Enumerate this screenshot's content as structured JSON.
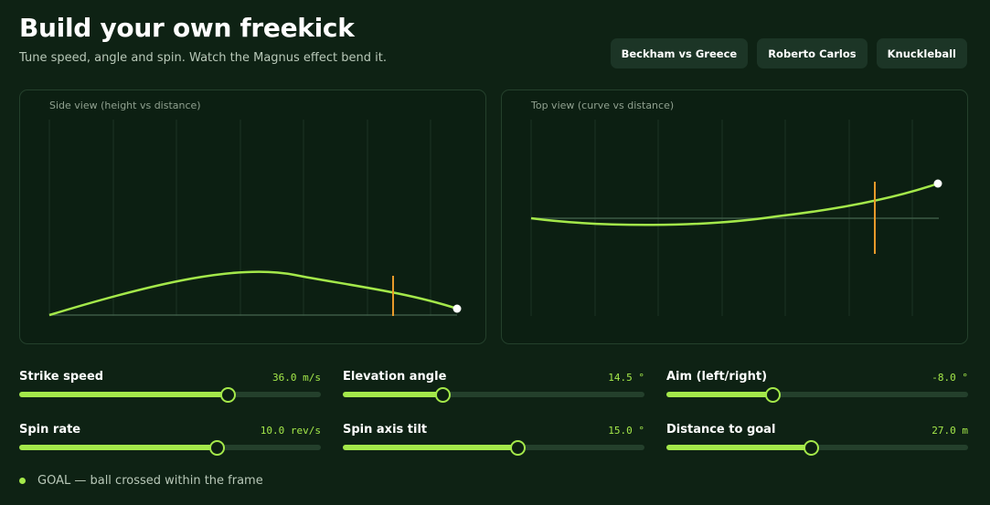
{
  "header": {
    "title": "Build your own freekick",
    "subtitle": "Tune speed, angle and spin. Watch the Magnus effect bend it."
  },
  "presets": [
    "Beckham vs Greece",
    "Roberto Carlos",
    "Knuckleball"
  ],
  "side_view": {
    "label": "Side view (height vs distance)"
  },
  "top_view": {
    "label": "Top view (curve vs distance)"
  },
  "controls": [
    {
      "label": "Strike speed",
      "value_text": "36.0 m/s",
      "fraction": 0.69
    },
    {
      "label": "Elevation angle",
      "value_text": "14.5 °",
      "fraction": 0.33
    },
    {
      "label": "Aim (left/right)",
      "value_text": "-8.0 °",
      "fraction": 0.35
    },
    {
      "label": "Spin rate",
      "value_text": "10.0 rev/s",
      "fraction": 0.655
    },
    {
      "label": "Spin axis tilt",
      "value_text": "15.0 °",
      "fraction": 0.58
    },
    {
      "label": "Distance to goal",
      "value_text": "27.0 m",
      "fraction": 0.48
    }
  ],
  "status": {
    "text": "GOAL — ball crossed within the frame"
  },
  "colors": {
    "accent": "#a4e84a",
    "goal_marker": "#e89a2a",
    "ball": "#ffffff"
  }
}
